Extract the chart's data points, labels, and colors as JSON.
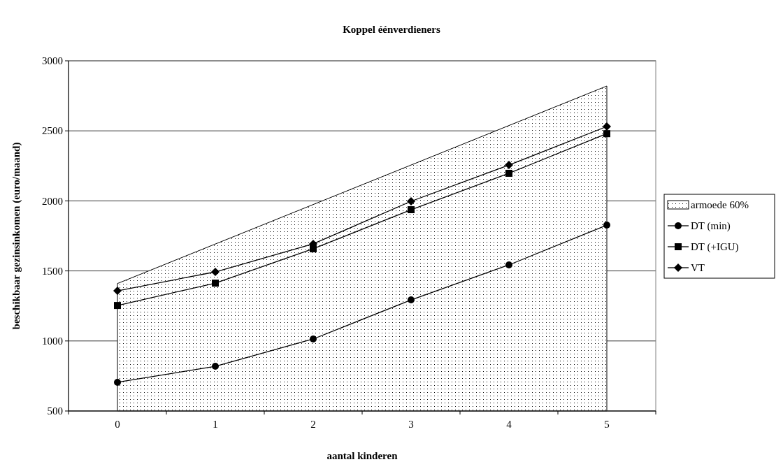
{
  "chart_data": {
    "type": "line",
    "title": "Koppel éénverdieners",
    "xlabel": "aantal kinderen",
    "ylabel": "beschikbaar gezinsinkomen (euro/maand)",
    "categories": [
      "0",
      "1",
      "2",
      "3",
      "4",
      "5"
    ],
    "series": [
      {
        "name": "armoede 60%",
        "type": "area",
        "color": "#000000",
        "values": [
          1410,
          1692,
          1974,
          2256,
          2538,
          2820
        ]
      },
      {
        "name": "DT (min)",
        "color": "#000000",
        "marker": "circle",
        "values": [
          705,
          819,
          1014,
          1293,
          1543,
          1827
        ]
      },
      {
        "name": "DT (+IGU)",
        "color": "#000000",
        "marker": "square",
        "values": [
          1253,
          1413,
          1658,
          1937,
          2197,
          2480
        ]
      },
      {
        "name": "VT",
        "color": "#000000",
        "marker": "diamond",
        "values": [
          1358,
          1493,
          1693,
          1997,
          2256,
          2531
        ]
      }
    ],
    "ylim": [
      500,
      3000
    ],
    "yticks": [
      500,
      1000,
      1500,
      2000,
      2500,
      3000
    ],
    "grid": "y",
    "legend": "right"
  }
}
